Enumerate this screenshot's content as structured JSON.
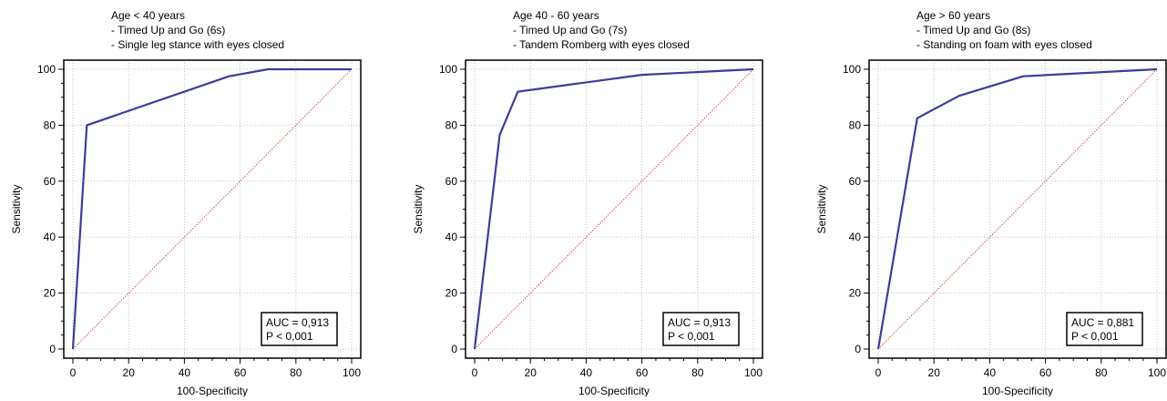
{
  "colors": {
    "curve": "#3c3c9c",
    "diagonal": "#c8503c",
    "grid": "#b4b4b4",
    "frame": "#000000"
  },
  "chart_data": [
    {
      "type": "line",
      "title_lines": [
        "Age < 40 years",
        "- Timed Up and Go (6s)",
        "- Single leg stance with eyes closed"
      ],
      "xlabel": "100-Specificity",
      "ylabel": "Sensitivity",
      "xlim": [
        0,
        100
      ],
      "ylim": [
        0,
        100
      ],
      "xticks": [
        "0",
        "20",
        "40",
        "60",
        "80",
        "100"
      ],
      "yticks": [
        "0",
        "20",
        "40",
        "60",
        "80",
        "100"
      ],
      "grid": true,
      "series": [
        {
          "x": [
            0,
            5,
            56,
            70,
            100
          ],
          "y": [
            0,
            80,
            97.5,
            100,
            100
          ]
        }
      ],
      "reference_line": {
        "x": [
          0,
          100
        ],
        "y": [
          0,
          100
        ]
      },
      "annotation": {
        "auc": "AUC = 0,913",
        "p": "P < 0,001"
      }
    },
    {
      "type": "line",
      "title_lines": [
        "Age 40 - 60 years",
        "- Timed Up and Go (7s)",
        "- Tandem Romberg with eyes closed"
      ],
      "xlabel": "100-Specificity",
      "ylabel": "Sensitivity",
      "xlim": [
        0,
        100
      ],
      "ylim": [
        0,
        100
      ],
      "xticks": [
        "0",
        "20",
        "40",
        "60",
        "80",
        "100"
      ],
      "yticks": [
        "0",
        "20",
        "40",
        "60",
        "80",
        "100"
      ],
      "grid": true,
      "series": [
        {
          "x": [
            0,
            9,
            15.5,
            60,
            100
          ],
          "y": [
            0,
            76.5,
            92,
            98,
            100
          ]
        }
      ],
      "reference_line": {
        "x": [
          0,
          100
        ],
        "y": [
          0,
          100
        ]
      },
      "annotation": {
        "auc": "AUC = 0,913",
        "p": "P < 0,001"
      }
    },
    {
      "type": "line",
      "title_lines": [
        "Age > 60 years",
        "- Timed Up and Go (8s)",
        "- Standing on foam with eyes closed"
      ],
      "xlabel": "100-Specificity",
      "ylabel": "Sensitivity",
      "xlim": [
        0,
        100
      ],
      "ylim": [
        0,
        100
      ],
      "xticks": [
        "0",
        "20",
        "40",
        "60",
        "80",
        "100"
      ],
      "yticks": [
        "0",
        "20",
        "40",
        "60",
        "80",
        "100"
      ],
      "grid": true,
      "series": [
        {
          "x": [
            0,
            14,
            29,
            52,
            100
          ],
          "y": [
            0,
            82.5,
            90.5,
            97.5,
            100
          ]
        }
      ],
      "reference_line": {
        "x": [
          0,
          100
        ],
        "y": [
          0,
          100
        ]
      },
      "annotation": {
        "auc": "AUC = 0,881",
        "p": "P < 0,001"
      }
    }
  ]
}
